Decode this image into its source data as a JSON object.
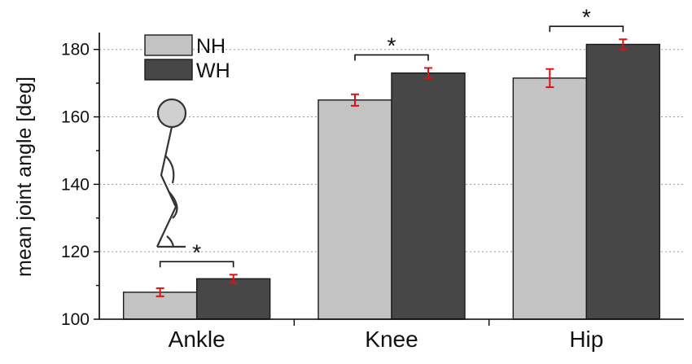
{
  "chart_data": {
    "type": "bar",
    "ylabel": "mean joint angle [deg]",
    "ylim": [
      100,
      185
    ],
    "yticks": [
      100,
      120,
      140,
      160,
      180
    ],
    "grid": true,
    "legend_position": "top-left",
    "categories": [
      "Ankle",
      "Knee",
      "Hip"
    ],
    "series": [
      {
        "name": "NH",
        "color": "#c3c3c3",
        "values": [
          108,
          165,
          171.5
        ],
        "errors": [
          1.2,
          1.7,
          2.7
        ]
      },
      {
        "name": "WH",
        "color": "#474747",
        "values": [
          112,
          173,
          181.5
        ],
        "errors": [
          1.2,
          1.5,
          1.5
        ]
      }
    ],
    "error_bar_color": "#e01010",
    "significance": [
      {
        "category": "Ankle",
        "label": "*"
      },
      {
        "category": "Knee",
        "label": "*"
      },
      {
        "category": "Hip",
        "label": "*"
      }
    ]
  }
}
